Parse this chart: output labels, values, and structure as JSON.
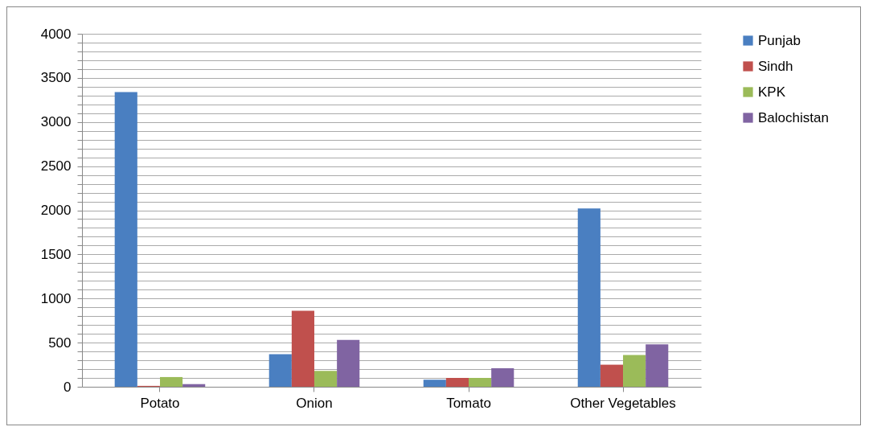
{
  "chart_data": {
    "type": "bar",
    "categories": [
      "Potato",
      "Onion",
      "Tomato",
      "Other Vegetables"
    ],
    "series": [
      {
        "name": "Punjab",
        "color": "#4a7fc1",
        "values": [
          3340,
          370,
          80,
          2020
        ]
      },
      {
        "name": "Sindh",
        "color": "#c0504d",
        "values": [
          10,
          860,
          100,
          250
        ]
      },
      {
        "name": "KPK",
        "color": "#9bbb59",
        "values": [
          110,
          180,
          100,
          360
        ]
      },
      {
        "name": "Balochistan",
        "color": "#8064a2",
        "values": [
          30,
          530,
          210,
          480
        ]
      }
    ],
    "ylim": [
      0,
      4000
    ],
    "yticks": [
      0,
      {
        "value": 100,
        "label": null
      },
      {
        "value": 200,
        "label": null
      },
      {
        "value": 300,
        "label": null
      },
      {
        "value": 400,
        "label": null
      },
      500,
      {
        "value": 600,
        "label": null
      },
      {
        "value": 700,
        "label": null
      },
      {
        "value": 800,
        "label": null
      },
      {
        "value": 900,
        "label": null
      },
      1000,
      {
        "value": 1100,
        "label": null
      },
      {
        "value": 1200,
        "label": null
      },
      {
        "value": 1300,
        "label": null
      },
      {
        "value": 1400,
        "label": null
      },
      1500,
      {
        "value": 1600,
        "label": null
      },
      {
        "value": 1700,
        "label": null
      },
      {
        "value": 1800,
        "label": null
      },
      {
        "value": 1900,
        "label": null
      },
      2000,
      {
        "value": 2100,
        "label": null
      },
      {
        "value": 2200,
        "label": null
      },
      {
        "value": 2300,
        "label": null
      },
      {
        "value": 2400,
        "label": null
      },
      2500,
      {
        "value": 2600,
        "label": null
      },
      {
        "value": 2700,
        "label": null
      },
      {
        "value": 2800,
        "label": null
      },
      {
        "value": 2900,
        "label": null
      },
      3000,
      {
        "value": 3100,
        "label": null
      },
      {
        "value": 3200,
        "label": null
      },
      {
        "value": 3300,
        "label": null
      },
      {
        "value": 3400,
        "label": null
      },
      3500,
      {
        "value": 3600,
        "label": null
      },
      {
        "value": 3700,
        "label": null
      },
      {
        "value": 3800,
        "label": null
      },
      {
        "value": 3900,
        "label": null
      },
      4000
    ],
    "grid": "y",
    "legend": "right"
  }
}
